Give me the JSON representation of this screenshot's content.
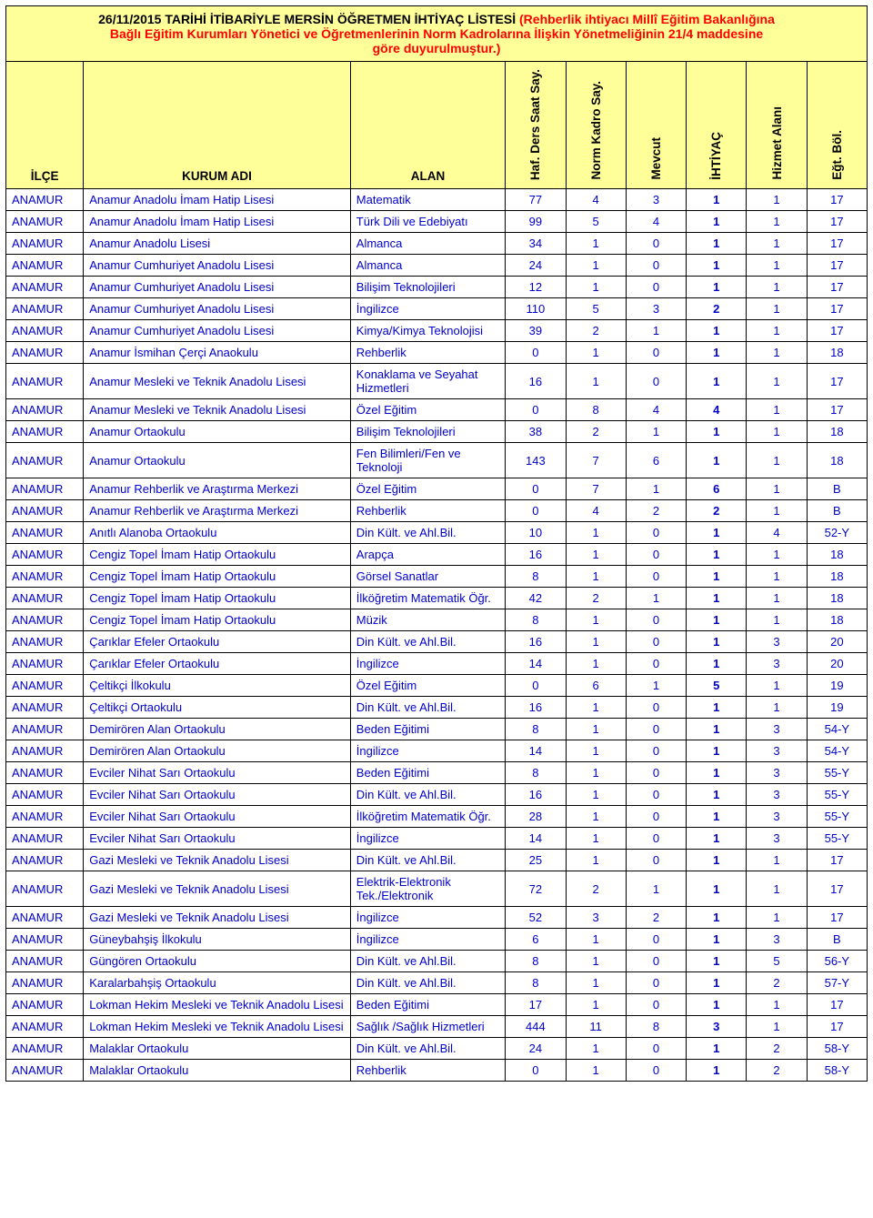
{
  "title": {
    "line1_black": "26/11/2015 TARİHİ İTİBARİYLE MERSİN ÖĞRETMEN İHTİYAÇ LİSTESİ ",
    "line1_red": "(Rehberlik ihtiyacı Millî Eğitim Bakanlığına",
    "line2": "Bağlı Eğitim Kurumları Yönetici ve Öğretmenlerinin Norm Kadrolarına İlişkin Yönetmeliğinin 21/4 maddesine",
    "line3": "göre duyurulmuştur.)"
  },
  "headers": {
    "ilce": "İLÇE",
    "kurum": "KURUM ADI",
    "alan": "ALAN",
    "haf": "Haf. Ders Saat Say.",
    "norm": "Norm Kadro Say.",
    "mevcut": "Mevcut",
    "iht": "İHTİYAÇ",
    "hizmet": "Hizmet  Alanı",
    "egt": "Eğt. Böl."
  },
  "rows": [
    {
      "ilce": "ANAMUR",
      "kurum": "Anamur Anadolu İmam Hatip Lisesi",
      "alan": "Matematik",
      "haf": "77",
      "norm": "4",
      "mev": "3",
      "iht": "1",
      "hiz": "1",
      "egt": "17"
    },
    {
      "ilce": "ANAMUR",
      "kurum": "Anamur Anadolu İmam Hatip Lisesi",
      "alan": "Türk Dili ve Edebiyatı",
      "haf": "99",
      "norm": "5",
      "mev": "4",
      "iht": "1",
      "hiz": "1",
      "egt": "17"
    },
    {
      "ilce": "ANAMUR",
      "kurum": "Anamur Anadolu Lisesi",
      "alan": "Almanca",
      "haf": "34",
      "norm": "1",
      "mev": "0",
      "iht": "1",
      "hiz": "1",
      "egt": "17"
    },
    {
      "ilce": "ANAMUR",
      "kurum": "Anamur Cumhuriyet Anadolu Lisesi",
      "alan": "Almanca",
      "haf": "24",
      "norm": "1",
      "mev": "0",
      "iht": "1",
      "hiz": "1",
      "egt": "17"
    },
    {
      "ilce": "ANAMUR",
      "kurum": "Anamur Cumhuriyet Anadolu Lisesi",
      "alan": "Bilişim Teknolojileri",
      "haf": "12",
      "norm": "1",
      "mev": "0",
      "iht": "1",
      "hiz": "1",
      "egt": "17"
    },
    {
      "ilce": "ANAMUR",
      "kurum": "Anamur Cumhuriyet Anadolu Lisesi",
      "alan": "İngilizce",
      "haf": "110",
      "norm": "5",
      "mev": "3",
      "iht": "2",
      "hiz": "1",
      "egt": "17"
    },
    {
      "ilce": "ANAMUR",
      "kurum": "Anamur Cumhuriyet Anadolu Lisesi",
      "alan": "Kimya/Kimya Teknolojisi",
      "haf": "39",
      "norm": "2",
      "mev": "1",
      "iht": "1",
      "hiz": "1",
      "egt": "17"
    },
    {
      "ilce": "ANAMUR",
      "kurum": "Anamur İsmihan Çerçi Anaokulu",
      "alan": "Rehberlik",
      "haf": "0",
      "norm": "1",
      "mev": "0",
      "iht": "1",
      "hiz": "1",
      "egt": "18"
    },
    {
      "ilce": "ANAMUR",
      "kurum": "Anamur Mesleki ve Teknik Anadolu Lisesi",
      "alan": "Konaklama ve Seyahat Hizmetleri",
      "haf": "16",
      "norm": "1",
      "mev": "0",
      "iht": "1",
      "hiz": "1",
      "egt": "17"
    },
    {
      "ilce": "ANAMUR",
      "kurum": "Anamur Mesleki ve Teknik Anadolu Lisesi",
      "alan": "Özel Eğitim",
      "haf": "0",
      "norm": "8",
      "mev": "4",
      "iht": "4",
      "hiz": "1",
      "egt": "17"
    },
    {
      "ilce": "ANAMUR",
      "kurum": "Anamur Ortaokulu",
      "alan": "Bilişim Teknolojileri",
      "haf": "38",
      "norm": "2",
      "mev": "1",
      "iht": "1",
      "hiz": "1",
      "egt": "18"
    },
    {
      "ilce": "ANAMUR",
      "kurum": "Anamur Ortaokulu",
      "alan": "Fen Bilimleri/Fen ve Teknoloji",
      "haf": "143",
      "norm": "7",
      "mev": "6",
      "iht": "1",
      "hiz": "1",
      "egt": "18"
    },
    {
      "ilce": "ANAMUR",
      "kurum": "Anamur Rehberlik ve Araştırma Merkezi",
      "alan": "Özel Eğitim",
      "haf": "0",
      "norm": "7",
      "mev": "1",
      "iht": "6",
      "hiz": "1",
      "egt": "B"
    },
    {
      "ilce": "ANAMUR",
      "kurum": "Anamur Rehberlik ve Araştırma Merkezi",
      "alan": "Rehberlik",
      "haf": "0",
      "norm": "4",
      "mev": "2",
      "iht": "2",
      "hiz": "1",
      "egt": "B"
    },
    {
      "ilce": "ANAMUR",
      "kurum": "Anıtlı Alanoba Ortaokulu",
      "alan": "Din Kült. ve Ahl.Bil.",
      "haf": "10",
      "norm": "1",
      "mev": "0",
      "iht": "1",
      "hiz": "4",
      "egt": "52-Y"
    },
    {
      "ilce": "ANAMUR",
      "kurum": "Cengiz Topel İmam Hatip Ortaokulu",
      "alan": "Arapça",
      "haf": "16",
      "norm": "1",
      "mev": "0",
      "iht": "1",
      "hiz": "1",
      "egt": "18"
    },
    {
      "ilce": "ANAMUR",
      "kurum": "Cengiz Topel İmam Hatip Ortaokulu",
      "alan": "Görsel Sanatlar",
      "haf": "8",
      "norm": "1",
      "mev": "0",
      "iht": "1",
      "hiz": "1",
      "egt": "18"
    },
    {
      "ilce": "ANAMUR",
      "kurum": "Cengiz Topel İmam Hatip Ortaokulu",
      "alan": "İlköğretim Matematik Öğr.",
      "haf": "42",
      "norm": "2",
      "mev": "1",
      "iht": "1",
      "hiz": "1",
      "egt": "18"
    },
    {
      "ilce": "ANAMUR",
      "kurum": "Cengiz Topel İmam Hatip Ortaokulu",
      "alan": "Müzik",
      "haf": "8",
      "norm": "1",
      "mev": "0",
      "iht": "1",
      "hiz": "1",
      "egt": "18"
    },
    {
      "ilce": "ANAMUR",
      "kurum": "Çarıklar Efeler Ortaokulu",
      "alan": "Din Kült. ve Ahl.Bil.",
      "haf": "16",
      "norm": "1",
      "mev": "0",
      "iht": "1",
      "hiz": "3",
      "egt": "20"
    },
    {
      "ilce": "ANAMUR",
      "kurum": "Çarıklar Efeler Ortaokulu",
      "alan": "İngilizce",
      "haf": "14",
      "norm": "1",
      "mev": "0",
      "iht": "1",
      "hiz": "3",
      "egt": "20"
    },
    {
      "ilce": "ANAMUR",
      "kurum": "Çeltikçi İlkokulu",
      "alan": "Özel Eğitim",
      "haf": "0",
      "norm": "6",
      "mev": "1",
      "iht": "5",
      "hiz": "1",
      "egt": "19"
    },
    {
      "ilce": "ANAMUR",
      "kurum": "Çeltikçi Ortaokulu",
      "alan": "Din Kült. ve Ahl.Bil.",
      "haf": "16",
      "norm": "1",
      "mev": "0",
      "iht": "1",
      "hiz": "1",
      "egt": "19"
    },
    {
      "ilce": "ANAMUR",
      "kurum": "Demirören Alan Ortaokulu",
      "alan": "Beden Eğitimi",
      "haf": "8",
      "norm": "1",
      "mev": "0",
      "iht": "1",
      "hiz": "3",
      "egt": "54-Y"
    },
    {
      "ilce": "ANAMUR",
      "kurum": "Demirören Alan Ortaokulu",
      "alan": "İngilizce",
      "haf": "14",
      "norm": "1",
      "mev": "0",
      "iht": "1",
      "hiz": "3",
      "egt": "54-Y"
    },
    {
      "ilce": "ANAMUR",
      "kurum": "Evciler Nihat Sarı Ortaokulu",
      "alan": "Beden Eğitimi",
      "haf": "8",
      "norm": "1",
      "mev": "0",
      "iht": "1",
      "hiz": "3",
      "egt": "55-Y"
    },
    {
      "ilce": "ANAMUR",
      "kurum": "Evciler Nihat Sarı Ortaokulu",
      "alan": "Din Kült. ve Ahl.Bil.",
      "haf": "16",
      "norm": "1",
      "mev": "0",
      "iht": "1",
      "hiz": "3",
      "egt": "55-Y"
    },
    {
      "ilce": "ANAMUR",
      "kurum": "Evciler Nihat Sarı Ortaokulu",
      "alan": "İlköğretim Matematik Öğr.",
      "haf": "28",
      "norm": "1",
      "mev": "0",
      "iht": "1",
      "hiz": "3",
      "egt": "55-Y"
    },
    {
      "ilce": "ANAMUR",
      "kurum": "Evciler Nihat Sarı Ortaokulu",
      "alan": "İngilizce",
      "haf": "14",
      "norm": "1",
      "mev": "0",
      "iht": "1",
      "hiz": "3",
      "egt": "55-Y"
    },
    {
      "ilce": "ANAMUR",
      "kurum": "Gazi Mesleki ve Teknik Anadolu Lisesi",
      "alan": "Din Kült. ve Ahl.Bil.",
      "haf": "25",
      "norm": "1",
      "mev": "0",
      "iht": "1",
      "hiz": "1",
      "egt": "17"
    },
    {
      "ilce": "ANAMUR",
      "kurum": "Gazi Mesleki ve Teknik Anadolu Lisesi",
      "alan": "Elektrik-Elektronik Tek./Elektronik",
      "haf": "72",
      "norm": "2",
      "mev": "1",
      "iht": "1",
      "hiz": "1",
      "egt": "17"
    },
    {
      "ilce": "ANAMUR",
      "kurum": "Gazi Mesleki ve Teknik Anadolu Lisesi",
      "alan": "İngilizce",
      "haf": "52",
      "norm": "3",
      "mev": "2",
      "iht": "1",
      "hiz": "1",
      "egt": "17"
    },
    {
      "ilce": "ANAMUR",
      "kurum": "Güneybahşiş İlkokulu",
      "alan": "İngilizce",
      "haf": "6",
      "norm": "1",
      "mev": "0",
      "iht": "1",
      "hiz": "3",
      "egt": "B"
    },
    {
      "ilce": "ANAMUR",
      "kurum": "Güngören Ortaokulu",
      "alan": "Din Kült. ve Ahl.Bil.",
      "haf": "8",
      "norm": "1",
      "mev": "0",
      "iht": "1",
      "hiz": "5",
      "egt": "56-Y"
    },
    {
      "ilce": "ANAMUR",
      "kurum": "Karalarbahşiş Ortaokulu",
      "alan": "Din Kült. ve Ahl.Bil.",
      "haf": "8",
      "norm": "1",
      "mev": "0",
      "iht": "1",
      "hiz": "2",
      "egt": "57-Y"
    },
    {
      "ilce": "ANAMUR",
      "kurum": "Lokman Hekim Mesleki ve Teknik Anadolu Lisesi",
      "alan": "Beden Eğitimi",
      "haf": "17",
      "norm": "1",
      "mev": "0",
      "iht": "1",
      "hiz": "1",
      "egt": "17"
    },
    {
      "ilce": "ANAMUR",
      "kurum": "Lokman Hekim Mesleki ve Teknik Anadolu Lisesi",
      "alan": "Sağlık /Sağlık Hizmetleri",
      "haf": "444",
      "norm": "11",
      "mev": "8",
      "iht": "3",
      "hiz": "1",
      "egt": "17"
    },
    {
      "ilce": "ANAMUR",
      "kurum": "Malaklar Ortaokulu",
      "alan": "Din Kült. ve Ahl.Bil.",
      "haf": "24",
      "norm": "1",
      "mev": "0",
      "iht": "1",
      "hiz": "2",
      "egt": "58-Y"
    },
    {
      "ilce": "ANAMUR",
      "kurum": "Malaklar Ortaokulu",
      "alan": "Rehberlik",
      "haf": "0",
      "norm": "1",
      "mev": "0",
      "iht": "1",
      "hiz": "2",
      "egt": "58-Y"
    }
  ],
  "style": {
    "title_bg": "#ffff99",
    "row_text_color": "#0000cc",
    "border_color": "#000000",
    "title_red": "#ff0000",
    "font_family": "Arial",
    "header_fontsize": 13.5,
    "row_fontsize": 13
  }
}
